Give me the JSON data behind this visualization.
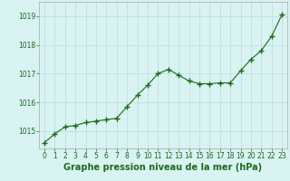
{
  "x": [
    0,
    1,
    2,
    3,
    4,
    5,
    6,
    7,
    8,
    9,
    10,
    11,
    12,
    13,
    14,
    15,
    16,
    17,
    18,
    19,
    20,
    21,
    22,
    23
  ],
  "y": [
    1014.6,
    1014.9,
    1015.15,
    1015.2,
    1015.3,
    1015.35,
    1015.4,
    1015.45,
    1015.85,
    1016.25,
    1016.6,
    1017.0,
    1017.15,
    1016.95,
    1016.75,
    1016.65,
    1016.65,
    1016.68,
    1016.68,
    1017.1,
    1017.5,
    1017.8,
    1018.3,
    1019.05
  ],
  "line_color": "#1a6b1a",
  "marker": "+",
  "marker_size": 4,
  "background_color": "#d9f2f2",
  "grid_color": "#c0dede",
  "title": "Graphe pression niveau de la mer (hPa)",
  "ylim": [
    1014.4,
    1019.5
  ],
  "xlim": [
    -0.5,
    23.5
  ],
  "yticks": [
    1015,
    1016,
    1017,
    1018,
    1019
  ],
  "xticks": [
    0,
    1,
    2,
    3,
    4,
    5,
    6,
    7,
    8,
    9,
    10,
    11,
    12,
    13,
    14,
    15,
    16,
    17,
    18,
    19,
    20,
    21,
    22,
    23
  ],
  "title_fontsize": 7,
  "tick_fontsize": 5.5,
  "title_color": "#1a6b1a",
  "tick_color": "#1a6b1a",
  "spine_color": "#aaaaaa",
  "linewidth": 0.8,
  "marker_linewidth": 1.0
}
